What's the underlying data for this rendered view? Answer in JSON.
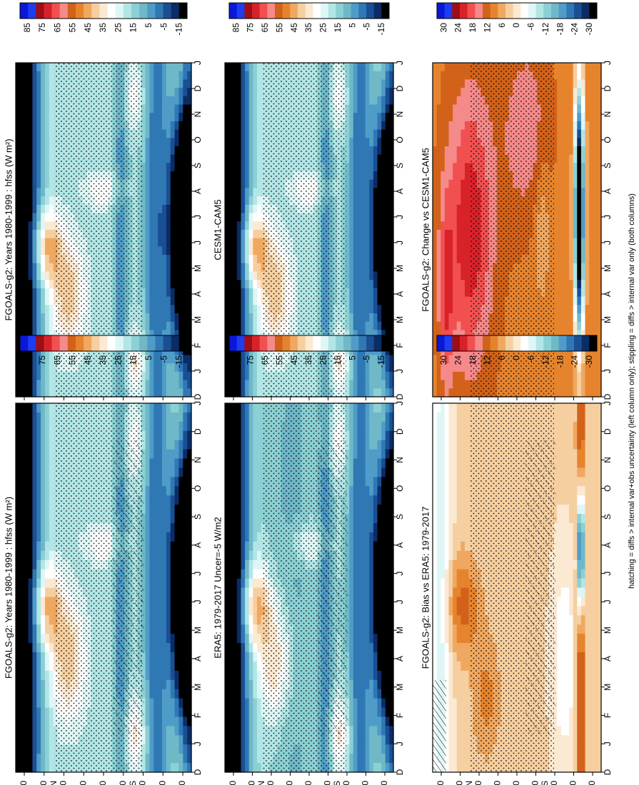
{
  "figure": {
    "footnote": "hatching = diffs > internal var+obs uncertainty (left column only); stippling = diffs > internal var only (both columns)"
  },
  "chart_data": [
    {
      "type": "heatmap",
      "title": "FGOALS-g2: Years 1980-1999 : hfss (W m²)",
      "x_ticks": [
        "D",
        "J",
        "F",
        "M",
        "A",
        "M",
        "J",
        "J",
        "A",
        "S",
        "O",
        "N",
        "D",
        "J"
      ],
      "y_ticks": [
        "80",
        "60",
        "40",
        "20",
        "0",
        "20",
        "40",
        "60",
        "80"
      ],
      "y_hemisphere_labels": [
        "°N",
        "°S"
      ],
      "colorbar_labels": [
        "85",
        "75",
        "65",
        "55",
        "45",
        "35",
        "25",
        "15",
        "5",
        "-5",
        "-15"
      ],
      "stippling": true,
      "hatching": true
    },
    {
      "type": "heatmap",
      "title": "FGOALS-g2: Years 1980-1999 : hfss (W m²)",
      "x_ticks": [
        "D",
        "J",
        "F",
        "M",
        "A",
        "M",
        "J",
        "J",
        "A",
        "S",
        "O",
        "N",
        "D",
        "J"
      ],
      "y_ticks": [
        "80",
        "60",
        "40",
        "20",
        "0",
        "20",
        "40",
        "60",
        "80"
      ],
      "y_hemisphere_labels": [
        "°N",
        "°S"
      ],
      "colorbar_labels": [
        "85",
        "75",
        "65",
        "55",
        "45",
        "35",
        "25",
        "15",
        "5",
        "-5",
        "-15"
      ],
      "stippling": true,
      "hatching": false
    },
    {
      "type": "heatmap",
      "title": "ERA5: 1979-2017 Uncer=-5 W/m2",
      "x_ticks": [
        "D",
        "J",
        "F",
        "M",
        "A",
        "M",
        "J",
        "J",
        "A",
        "S",
        "O",
        "N",
        "D",
        "J"
      ],
      "y_ticks": [
        "80",
        "60",
        "40",
        "20",
        "0",
        "20",
        "40",
        "60",
        "80"
      ],
      "y_hemisphere_labels": [
        "°N",
        "°S"
      ],
      "colorbar_labels": [
        "85",
        "75",
        "65",
        "55",
        "45",
        "35",
        "25",
        "15",
        "5",
        "-5",
        "-15"
      ],
      "stippling": true,
      "hatching": true
    },
    {
      "type": "heatmap",
      "title": "CESM1-CAM5",
      "x_ticks": [
        "D",
        "J",
        "F",
        "M",
        "A",
        "M",
        "J",
        "J",
        "A",
        "S",
        "O",
        "N",
        "D",
        "J"
      ],
      "y_ticks": [
        "80",
        "60",
        "40",
        "20",
        "0",
        "20",
        "40",
        "60",
        "80"
      ],
      "y_hemisphere_labels": [
        "°N",
        "°S"
      ],
      "colorbar_labels": [
        "85",
        "75",
        "65",
        "55",
        "45",
        "35",
        "25",
        "15",
        "5",
        "-5",
        "-15"
      ],
      "stippling": true,
      "hatching": false
    },
    {
      "type": "heatmap",
      "title": "FGOALS-g2: Bias vs ERA5: 1979-2017",
      "x_ticks": [
        "D",
        "J",
        "F",
        "M",
        "A",
        "M",
        "J",
        "J",
        "A",
        "S",
        "O",
        "N",
        "D",
        "J"
      ],
      "y_ticks": [
        "80",
        "60",
        "40",
        "20",
        "0",
        "20",
        "40",
        "60",
        "80"
      ],
      "y_hemisphere_labels": [
        "°N",
        "°S"
      ],
      "colorbar_labels": [
        "30",
        "24",
        "18",
        "12",
        "6",
        "0",
        "-6",
        "-12",
        "-18",
        "-24",
        "-30"
      ],
      "stippling": true,
      "hatching": true
    },
    {
      "type": "heatmap",
      "title": "FGOALS-g2: Change vs CESM1-CAM5",
      "x_ticks": [
        "D",
        "J",
        "F",
        "M",
        "A",
        "M",
        "J",
        "J",
        "A",
        "S",
        "O",
        "N",
        "D",
        "J"
      ],
      "y_ticks": [
        "80",
        "60",
        "40",
        "20",
        "0",
        "20",
        "40",
        "60",
        "80"
      ],
      "y_hemisphere_labels": [
        "°N",
        "°S"
      ],
      "colorbar_labels": [
        "30",
        "24",
        "18",
        "12",
        "6",
        "0",
        "-6",
        "-12",
        "-18",
        "-24",
        "-30"
      ],
      "stippling": true,
      "hatching": false
    }
  ]
}
